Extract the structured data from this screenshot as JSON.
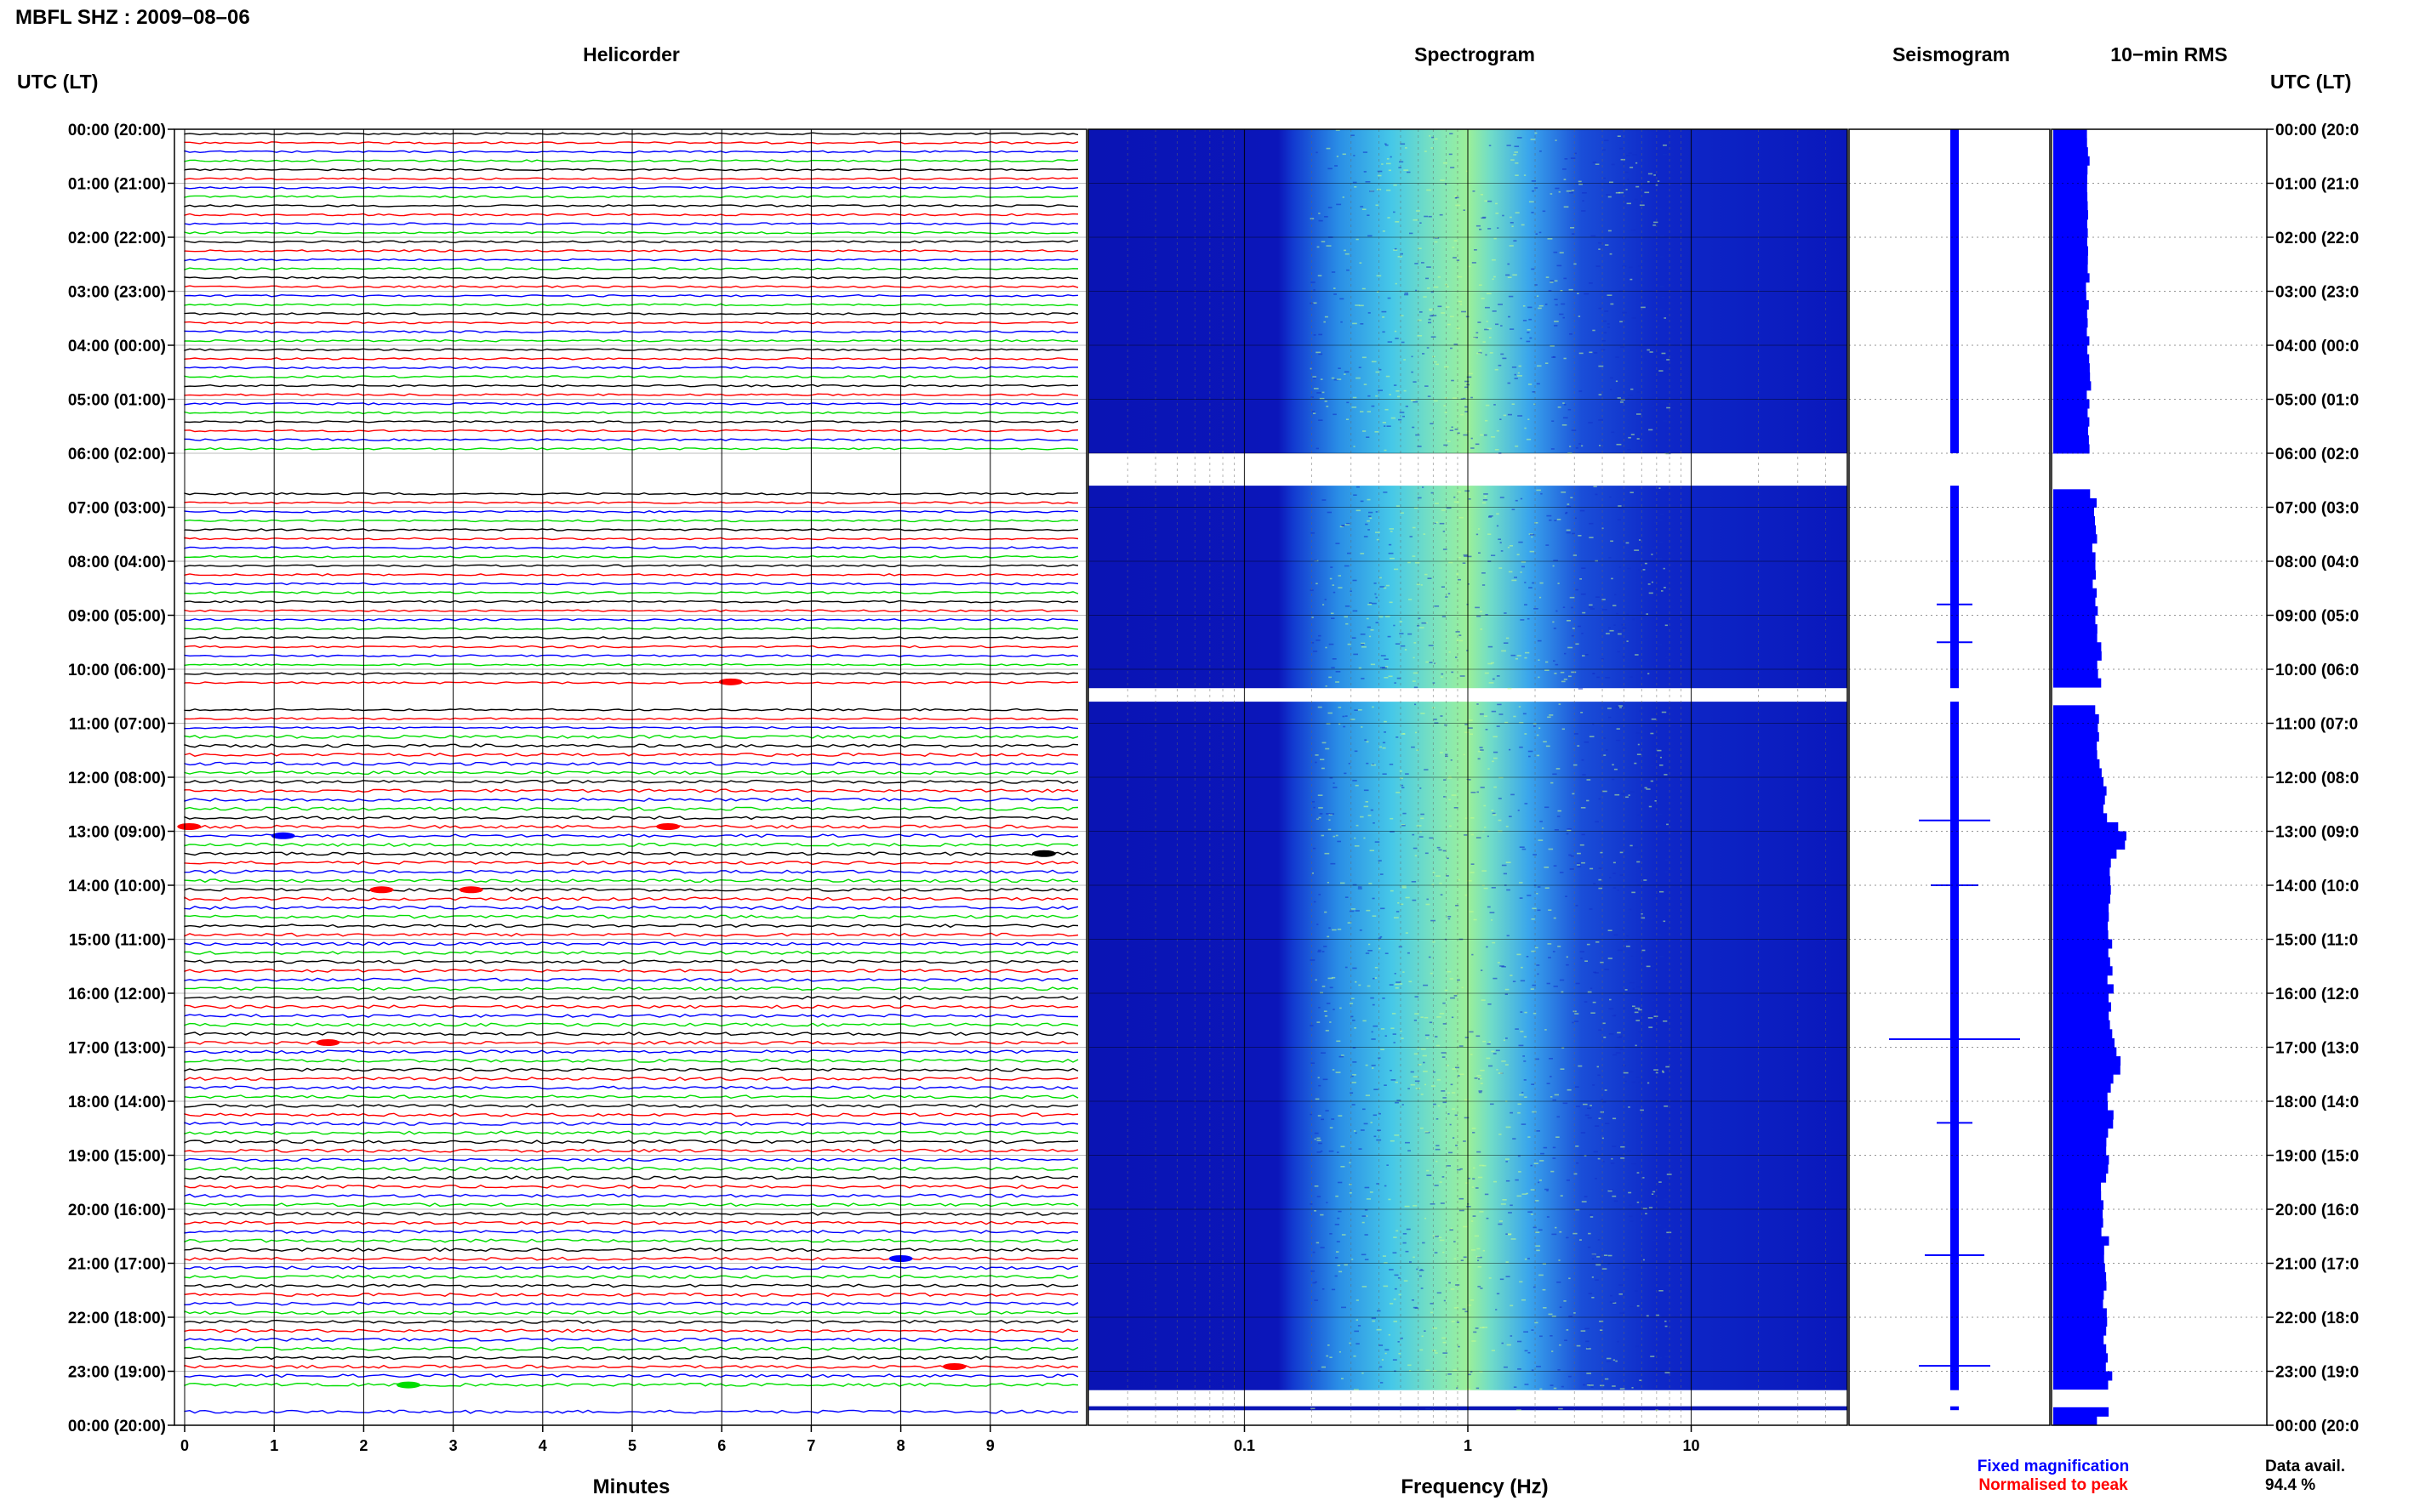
{
  "title": "MBFL SHZ : 2009–08–06",
  "headers": {
    "left_axis": "UTC (LT)",
    "right_axis": "UTC (LT)",
    "helicorder": "Helicorder",
    "spectrogram": "Spectrogram",
    "seismogram": "Seismogram",
    "rms": "10−min RMS"
  },
  "time_labels": [
    "00:00 (20:00)",
    "01:00 (21:00)",
    "02:00 (22:00)",
    "03:00 (23:00)",
    "04:00 (00:00)",
    "05:00 (01:00)",
    "06:00 (02:00)",
    "07:00 (03:00)",
    "08:00 (04:00)",
    "09:00 (05:00)",
    "10:00 (06:00)",
    "11:00 (07:00)",
    "12:00 (08:00)",
    "13:00 (09:00)",
    "14:00 (10:00)",
    "15:00 (11:00)",
    "16:00 (12:00)",
    "17:00 (13:00)",
    "18:00 (14:00)",
    "19:00 (15:00)",
    "20:00 (16:00)",
    "21:00 (17:00)",
    "22:00 (18:00)",
    "23:00 (19:00)",
    "00:00 (20:00)"
  ],
  "right_time_labels": [
    "00:00 (20:0",
    "01:00 (21:0",
    "02:00 (22:0",
    "03:00 (23:0",
    "04:00 (00:0",
    "05:00 (01:0",
    "06:00 (02:0",
    "07:00 (03:0",
    "08:00 (04:0",
    "09:00 (05:0",
    "10:00 (06:0",
    "11:00 (07:0",
    "12:00 (08:0",
    "13:00 (09:0",
    "14:00 (10:0",
    "15:00 (11:0",
    "16:00 (12:0",
    "17:00 (13:0",
    "18:00 (14:0",
    "19:00 (15:0",
    "20:00 (16:0",
    "21:00 (17:0",
    "22:00 (18:0",
    "23:00 (19:0",
    "00:00 (20:0"
  ],
  "footer": {
    "fixed_magnification": "Fixed magnification",
    "normalised_to_peak": "Normalised to peak",
    "data_avail_label": "Data avail.",
    "data_avail_value": "94.4 %"
  },
  "colors": {
    "trace_cycle": [
      "#000000",
      "#ff0000",
      "#0000ff",
      "#00dd00"
    ],
    "fixed_magnification": "#0000ff",
    "normalised_to_peak": "#ff0000",
    "spectrogram_low": "#0a14b4",
    "spectrogram_high": "#b4ff78",
    "seismogram": "#0000ff",
    "rms": "#0000ff"
  },
  "chart_data": [
    {
      "type": "line",
      "name": "Helicorder",
      "xlabel": "Minutes",
      "xlim": [
        0,
        10
      ],
      "xticks": [
        0,
        1,
        2,
        3,
        4,
        5,
        6,
        7,
        8,
        9
      ],
      "ylim_hours": [
        0,
        24
      ],
      "traces_per_hour": 6,
      "minutes_per_trace": 10,
      "grid": true,
      "data_gaps_hours": [
        [
          6.0,
          6.6
        ],
        [
          10.35,
          10.6
        ],
        [
          23.35,
          23.65
        ],
        [
          23.72,
          24.0
        ]
      ],
      "events": [
        {
          "hour": 10.15,
          "minute": 6.1,
          "color": "red"
        },
        {
          "hour": 12.83,
          "minute": 0.05,
          "color": "red"
        },
        {
          "hour": 12.83,
          "minute": 5.4,
          "color": "red"
        },
        {
          "hour": 13.0,
          "minute": 1.1,
          "color": "blue"
        },
        {
          "hour": 13.33,
          "minute": 9.6,
          "color": "black"
        },
        {
          "hour": 14.0,
          "minute": 2.2,
          "color": "red"
        },
        {
          "hour": 14.0,
          "minute": 3.2,
          "color": "red"
        },
        {
          "hour": 16.83,
          "minute": 1.6,
          "color": "red"
        },
        {
          "hour": 20.83,
          "minute": 8.0,
          "color": "blue"
        },
        {
          "hour": 22.83,
          "minute": 8.6,
          "color": "red"
        },
        {
          "hour": 23.17,
          "minute": 2.5,
          "color": "green"
        }
      ]
    },
    {
      "type": "heatmap",
      "name": "Spectrogram",
      "xlabel": "Frequency (Hz)",
      "xscale": "log",
      "xlim": [
        0.02,
        50
      ],
      "xtick_labels": [
        "0.1",
        "1",
        "10"
      ],
      "ylim_hours": [
        0,
        24
      ],
      "grid": true,
      "energy_band_hz": [
        0.3,
        3
      ],
      "peak_frequency_hz": 0.9
    },
    {
      "type": "line",
      "name": "Seismogram",
      "amplitude_spikes_hours": [
        [
          8.8,
          0.15
        ],
        [
          9.5,
          0.15
        ],
        [
          12.8,
          0.3
        ],
        [
          14.0,
          0.2
        ],
        [
          16.85,
          0.55
        ],
        [
          18.4,
          0.15
        ],
        [
          20.85,
          0.25
        ],
        [
          22.9,
          0.3
        ]
      ]
    },
    {
      "type": "bar",
      "name": "10-min RMS",
      "orientation": "horizontal",
      "profile_hours": [
        [
          0.0,
          0.3
        ],
        [
          0.5,
          0.3
        ],
        [
          1.0,
          0.3
        ],
        [
          2.0,
          0.3
        ],
        [
          3.0,
          0.3
        ],
        [
          4.0,
          0.31
        ],
        [
          5.0,
          0.31
        ],
        [
          5.9,
          0.31
        ],
        [
          6.7,
          0.36
        ],
        [
          7.5,
          0.36
        ],
        [
          8.5,
          0.38
        ],
        [
          9.5,
          0.4
        ],
        [
          10.3,
          0.4
        ],
        [
          10.65,
          0.38
        ],
        [
          11.0,
          0.4
        ],
        [
          12.0,
          0.46
        ],
        [
          12.8,
          0.6
        ],
        [
          13.2,
          0.52
        ],
        [
          14.0,
          0.5
        ],
        [
          15.0,
          0.5
        ],
        [
          16.0,
          0.5
        ],
        [
          16.8,
          0.56
        ],
        [
          17.5,
          0.5
        ],
        [
          18.5,
          0.46
        ],
        [
          19.5,
          0.44
        ],
        [
          20.5,
          0.46
        ],
        [
          21.5,
          0.46
        ],
        [
          22.5,
          0.46
        ],
        [
          23.0,
          0.5
        ],
        [
          23.3,
          0.46
        ]
      ],
      "late_block_hours": [
        23.72,
        24.0,
        0.38
      ]
    }
  ]
}
